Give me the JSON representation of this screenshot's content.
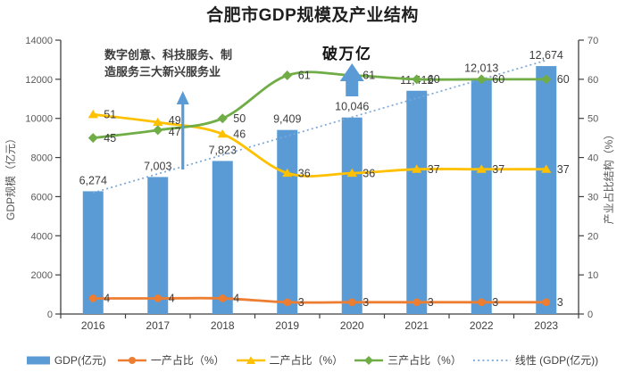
{
  "title": "合肥市GDP规模及产业结构",
  "chart_data": {
    "type": "combo-bar-line",
    "categories": [
      "2016",
      "2017",
      "2018",
      "2019",
      "2020",
      "2021",
      "2022",
      "2023"
    ],
    "bar_series": {
      "name": "GDP(亿元)",
      "axis": "left",
      "color": "#5b9bd5",
      "values": [
        6274,
        7003,
        7823,
        9409,
        10046,
        11412,
        12013,
        12674
      ],
      "labels": [
        "6,274",
        "7,003",
        "7,823",
        "9,409",
        "10,046",
        "11,412",
        "12,013",
        "12,674"
      ]
    },
    "line_series": [
      {
        "name": "一产占比（%）",
        "axis": "right",
        "color": "#ed7d31",
        "marker": "circle",
        "values": [
          4,
          4,
          4,
          3,
          3,
          3,
          3,
          3
        ]
      },
      {
        "name": "二产占比（%）",
        "axis": "right",
        "color": "#ffc000",
        "marker": "triangle",
        "values": [
          51,
          49,
          46,
          36,
          36,
          37,
          37,
          37
        ]
      },
      {
        "name": "三产占比（%）",
        "axis": "right",
        "color": "#70ad47",
        "marker": "diamond",
        "values": [
          45,
          47,
          50,
          61,
          61,
          60,
          60,
          60
        ]
      }
    ],
    "trendline": {
      "name": "线性 (GDP(亿元))",
      "color": "#7aa7d9",
      "style": "dotted",
      "start_value": 6196,
      "end_value": 12967
    },
    "left_axis": {
      "title": "GDP规模（亿元）",
      "min": 0,
      "max": 14000,
      "ticks": [
        0,
        2000,
        4000,
        6000,
        8000,
        10000,
        12000,
        14000
      ]
    },
    "right_axis": {
      "title": "产业占比结构（%）",
      "min": 0,
      "max": 70,
      "ticks": [
        0,
        10,
        20,
        30,
        40,
        50,
        60,
        70
      ]
    },
    "annotations": [
      {
        "text": "数字创意、科技服务、制造服务三大新兴服务业",
        "arrow": "up",
        "at_category": "2017"
      },
      {
        "text": "破万亿",
        "arrow": "up",
        "at_category": "2020"
      }
    ],
    "legend_position": "bottom"
  },
  "colors": {
    "bar": "#5b9bd5",
    "arrow": "#5b9bd5",
    "axis_line": "#3f3f3f",
    "axis_text": "#595959",
    "data_label": "#3d3d3d"
  }
}
